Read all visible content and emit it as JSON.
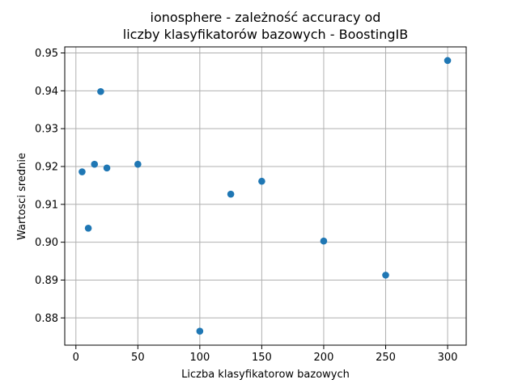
{
  "chart_data": {
    "type": "scatter",
    "title_lines": [
      "ionosphere - zależność accuracy od",
      "liczby klasyfikatorów bazowych - BoostingIB"
    ],
    "xlabel": "Liczba klasyfikatorow bazowych",
    "ylabel": "Wartosci srednie",
    "xlim": [
      -9,
      315
    ],
    "ylim": [
      0.8728,
      0.9516
    ],
    "xticks": [
      0,
      50,
      100,
      150,
      200,
      250,
      300
    ],
    "yticks": [
      0.88,
      0.89,
      0.9,
      0.91,
      0.92,
      0.93,
      0.94,
      0.95
    ],
    "ytick_labels": [
      "0.88",
      "0.89",
      "0.90",
      "0.91",
      "0.92",
      "0.93",
      "0.94",
      "0.95"
    ],
    "grid": true,
    "color": "#1f77b4",
    "x": [
      5,
      10,
      15,
      20,
      25,
      50,
      100,
      125,
      150,
      200,
      250,
      300
    ],
    "y": [
      0.9186,
      0.9037,
      0.9206,
      0.9398,
      0.9196,
      0.9206,
      0.8765,
      0.9127,
      0.9161,
      0.9003,
      0.8913,
      0.948
    ]
  }
}
